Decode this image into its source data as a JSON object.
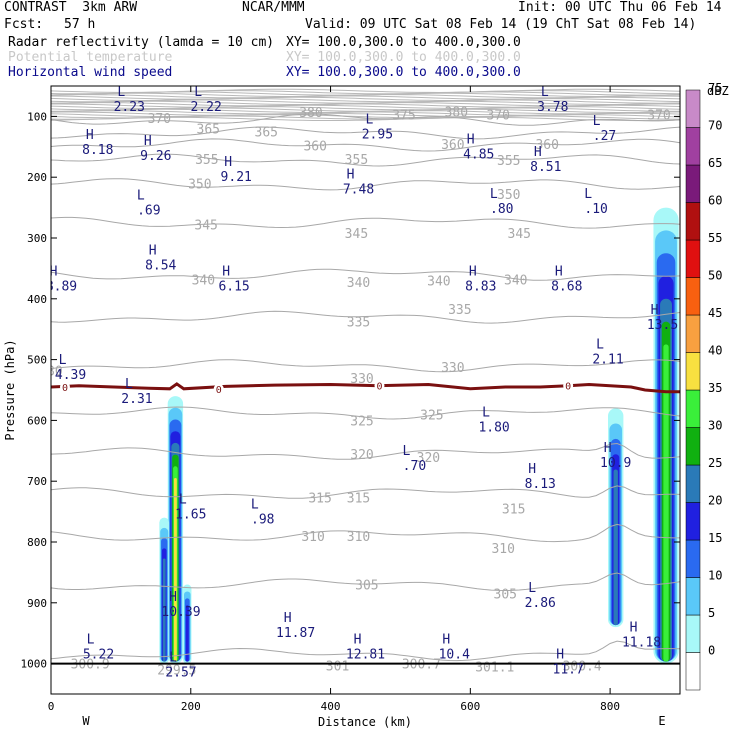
{
  "header": {
    "model": "CONTRAST  3km ARW",
    "org": "NCAR/MMM",
    "init": "Init: 00 UTC Thu 06 Feb 14",
    "fcst_label": "Fcst:",
    "fcst_value": "57 h",
    "valid": "Valid: 09 UTC Sat 08 Feb 14 (19 ChT Sat 08 Feb 14)",
    "fields": [
      {
        "name": "Radar reflectivity (lamda = 10 cm)",
        "xy": "XY= 100.0,300.0 to 400.0,300.0",
        "color": "#000000"
      },
      {
        "name": "Potential temperature",
        "xy": "XY= 100.0,300.0 to 400.0,300.0",
        "color": "#c8c8c8"
      },
      {
        "name": "Horizontal wind speed",
        "xy": "XY= 100.0,300.0 to 400.0,300.0",
        "color": "#0a0a8c"
      }
    ]
  },
  "colors": {
    "theta": "#a8a8a8",
    "freezing_line": "#7a1010",
    "wind": "#1a1a7a"
  },
  "chart_data": {
    "type": "cross-section",
    "xlabel": "Distance (km)",
    "ylabel": "Pressure (hPa)",
    "xlim": [
      0,
      900
    ],
    "ylim": [
      1050,
      50
    ],
    "x_ticks": [
      0,
      200,
      400,
      600,
      800
    ],
    "y_ticks": [
      100,
      200,
      300,
      400,
      500,
      600,
      700,
      800,
      900,
      1000
    ],
    "x_end_labels": {
      "left": "W",
      "right": "E"
    },
    "colorbar": {
      "unit": "dBZ",
      "levels": [
        0,
        5,
        10,
        15,
        20,
        25,
        30,
        35,
        40,
        45,
        50,
        55,
        60,
        65,
        70,
        75
      ],
      "colors": [
        "#ffffff",
        "#a8f8f8",
        "#5ac8f8",
        "#2a6af0",
        "#2020e0",
        "#2a7ab8",
        "#10b010",
        "#3aef3a",
        "#f8e040",
        "#f8a040",
        "#f86010",
        "#e01010",
        "#b01010",
        "#7a1a7a",
        "#a040a0",
        "#c88ac8"
      ]
    },
    "theta_contours": [
      {
        "value": 370,
        "p": 105
      },
      {
        "value": 365,
        "p": 127
      },
      {
        "value": 360,
        "p": 147
      },
      {
        "value": 355,
        "p": 172
      },
      {
        "value": 350,
        "p": 212
      },
      {
        "value": 345,
        "p": 275
      },
      {
        "value": 340,
        "p": 360
      },
      {
        "value": 335,
        "p": 430
      },
      {
        "value": 330,
        "p": 510
      },
      {
        "value": 325,
        "p": 588
      },
      {
        "value": 320,
        "p": 655
      },
      {
        "value": 315,
        "p": 720
      },
      {
        "value": 310,
        "p": 790
      },
      {
        "value": 305,
        "p": 870
      },
      {
        "value": 300,
        "p": 985
      }
    ],
    "theta_labels": [
      {
        "text": "370",
        "x": 155,
        "p": 103
      },
      {
        "text": "375",
        "x": 505,
        "p": 97
      },
      {
        "text": "380",
        "x": 372,
        "p": 93
      },
      {
        "text": "380",
        "x": 580,
        "p": 92
      },
      {
        "text": "370",
        "x": 640,
        "p": 97
      },
      {
        "text": "370",
        "x": 870,
        "p": 97
      },
      {
        "text": "365",
        "x": 225,
        "p": 120
      },
      {
        "text": "365",
        "x": 308,
        "p": 125
      },
      {
        "text": "360",
        "x": 378,
        "p": 148
      },
      {
        "text": "360",
        "x": 575,
        "p": 145
      },
      {
        "text": "360",
        "x": 710,
        "p": 145
      },
      {
        "text": "355",
        "x": 223,
        "p": 170
      },
      {
        "text": "355",
        "x": 437,
        "p": 170
      },
      {
        "text": "355",
        "x": 655,
        "p": 172
      },
      {
        "text": "350",
        "x": 213,
        "p": 210
      },
      {
        "text": "350",
        "x": 655,
        "p": 228
      },
      {
        "text": "345",
        "x": 222,
        "p": 278
      },
      {
        "text": "345",
        "x": 437,
        "p": 292
      },
      {
        "text": "345",
        "x": 670,
        "p": 292
      },
      {
        "text": "340",
        "x": 218,
        "p": 368
      },
      {
        "text": "340",
        "x": 440,
        "p": 372
      },
      {
        "text": "340",
        "x": 555,
        "p": 370
      },
      {
        "text": "340",
        "x": 665,
        "p": 368
      },
      {
        "text": "335",
        "x": 440,
        "p": 437
      },
      {
        "text": "335",
        "x": 585,
        "p": 417
      },
      {
        "text": "330",
        "x": 0,
        "p": 518
      },
      {
        "text": "330",
        "x": 445,
        "p": 530
      },
      {
        "text": "330",
        "x": 575,
        "p": 512
      },
      {
        "text": "325",
        "x": 445,
        "p": 600
      },
      {
        "text": "325",
        "x": 545,
        "p": 590
      },
      {
        "text": "320",
        "x": 445,
        "p": 655
      },
      {
        "text": "320",
        "x": 540,
        "p": 660
      },
      {
        "text": "315",
        "x": 385,
        "p": 727
      },
      {
        "text": "315",
        "x": 440,
        "p": 727
      },
      {
        "text": "315",
        "x": 662,
        "p": 745
      },
      {
        "text": "310",
        "x": 375,
        "p": 790
      },
      {
        "text": "310",
        "x": 440,
        "p": 790
      },
      {
        "text": "310",
        "x": 647,
        "p": 810
      },
      {
        "text": "305",
        "x": 452,
        "p": 870
      },
      {
        "text": "305",
        "x": 650,
        "p": 885
      },
      {
        "text": "300.9",
        "x": 56,
        "p": 1000
      },
      {
        "text": "299.5",
        "x": 180,
        "p": 1010
      },
      {
        "text": "301",
        "x": 410,
        "p": 1003
      },
      {
        "text": "300.7",
        "x": 530,
        "p": 1000
      },
      {
        "text": "301.1",
        "x": 635,
        "p": 1005
      },
      {
        "text": "300.4",
        "x": 760,
        "p": 1003
      }
    ],
    "freezing_line": {
      "value": 0,
      "points": [
        [
          0,
          545
        ],
        [
          40,
          543
        ],
        [
          90,
          545
        ],
        [
          140,
          547
        ],
        [
          170,
          548
        ],
        [
          180,
          540
        ],
        [
          190,
          548
        ],
        [
          250,
          544
        ],
        [
          320,
          542
        ],
        [
          400,
          541
        ],
        [
          470,
          543
        ],
        [
          540,
          541
        ],
        [
          600,
          548
        ],
        [
          650,
          545
        ],
        [
          700,
          545
        ],
        [
          740,
          543
        ],
        [
          770,
          541
        ],
        [
          800,
          543
        ],
        [
          830,
          545
        ],
        [
          850,
          550
        ],
        [
          880,
          553
        ],
        [
          900,
          553
        ]
      ],
      "labels_x": [
        20,
        240,
        470,
        740
      ]
    },
    "wind_extrema": [
      {
        "type": "L",
        "value": "2.23",
        "x": 112,
        "p": 80
      },
      {
        "type": "L",
        "value": "2.22",
        "x": 222,
        "p": 80
      },
      {
        "type": "L",
        "value": "3.78",
        "x": 718,
        "p": 80
      },
      {
        "type": "H",
        "value": "8.18",
        "x": 67,
        "p": 150
      },
      {
        "type": "H",
        "value": "9.26",
        "x": 150,
        "p": 160
      },
      {
        "type": "L",
        "value": "2.95",
        "x": 467,
        "p": 125
      },
      {
        "type": "H",
        "value": "4.85",
        "x": 612,
        "p": 158
      },
      {
        "type": "H",
        "value": "8.51",
        "x": 708,
        "p": 178
      },
      {
        "type": "L",
        "value": ".27",
        "x": 792,
        "p": 127
      },
      {
        "type": "H",
        "value": "9.21",
        "x": 265,
        "p": 195
      },
      {
        "type": "H",
        "value": "7.48",
        "x": 440,
        "p": 215
      },
      {
        "type": "L",
        "value": ".69",
        "x": 140,
        "p": 250
      },
      {
        "type": "L",
        "value": ".80",
        "x": 645,
        "p": 247
      },
      {
        "type": "L",
        "value": ".10",
        "x": 780,
        "p": 247
      },
      {
        "type": "H",
        "value": "8.54",
        "x": 157,
        "p": 340
      },
      {
        "type": "H",
        "value": "8.89",
        "x": 15,
        "p": 375
      },
      {
        "type": "H",
        "value": "6.15",
        "x": 262,
        "p": 375
      },
      {
        "type": "H",
        "value": "8.83",
        "x": 615,
        "p": 375
      },
      {
        "type": "H",
        "value": "8.68",
        "x": 738,
        "p": 375
      },
      {
        "type": "H",
        "value": "13.5",
        "x": 875,
        "p": 438
      },
      {
        "type": "L",
        "value": "4.39",
        "x": 28,
        "p": 520
      },
      {
        "type": "L",
        "value": "2.11",
        "x": 797,
        "p": 495
      },
      {
        "type": "L",
        "value": "2.31",
        "x": 123,
        "p": 560
      },
      {
        "type": "L",
        "value": "1.80",
        "x": 634,
        "p": 607
      },
      {
        "type": "L",
        "value": ".70",
        "x": 520,
        "p": 670
      },
      {
        "type": "H",
        "value": "10.9",
        "x": 808,
        "p": 665
      },
      {
        "type": "H",
        "value": "8.13",
        "x": 700,
        "p": 700
      },
      {
        "type": "L",
        "value": "1.65",
        "x": 200,
        "p": 750
      },
      {
        "type": "L",
        "value": ".98",
        "x": 303,
        "p": 758
      },
      {
        "type": "H",
        "value": "10.39",
        "x": 186,
        "p": 910
      },
      {
        "type": "H",
        "value": "11.87",
        "x": 350,
        "p": 945
      },
      {
        "type": "L",
        "value": "2.86",
        "x": 700,
        "p": 895
      },
      {
        "type": "L",
        "value": "5.22",
        "x": 68,
        "p": 980
      },
      {
        "type": "H",
        "value": "12.81",
        "x": 450,
        "p": 980
      },
      {
        "type": "H",
        "value": "10.4",
        "x": 577,
        "p": 980
      },
      {
        "type": "H",
        "value": "11.18",
        "x": 845,
        "p": 960
      },
      {
        "type": "H",
        "value": "11.7",
        "x": 740,
        "p": 1005
      },
      {
        "type": "L",
        "value": "2.57",
        "x": 186,
        "p": 1010
      }
    ],
    "reflectivity_cells": [
      {
        "x_center": 178,
        "p_top": 560,
        "p_bottom": 1000,
        "width_km": 22,
        "max_dbz": 40
      },
      {
        "x_center": 162,
        "p_top": 760,
        "p_bottom": 1000,
        "width_km": 14,
        "max_dbz": 25
      },
      {
        "x_center": 195,
        "p_top": 870,
        "p_bottom": 1000,
        "width_km": 12,
        "max_dbz": 20
      },
      {
        "x_center": 808,
        "p_top": 580,
        "p_bottom": 940,
        "width_km": 22,
        "max_dbz": 25
      },
      {
        "x_center": 880,
        "p_top": 250,
        "p_bottom": 1000,
        "width_km": 36,
        "max_dbz": 35
      }
    ]
  }
}
